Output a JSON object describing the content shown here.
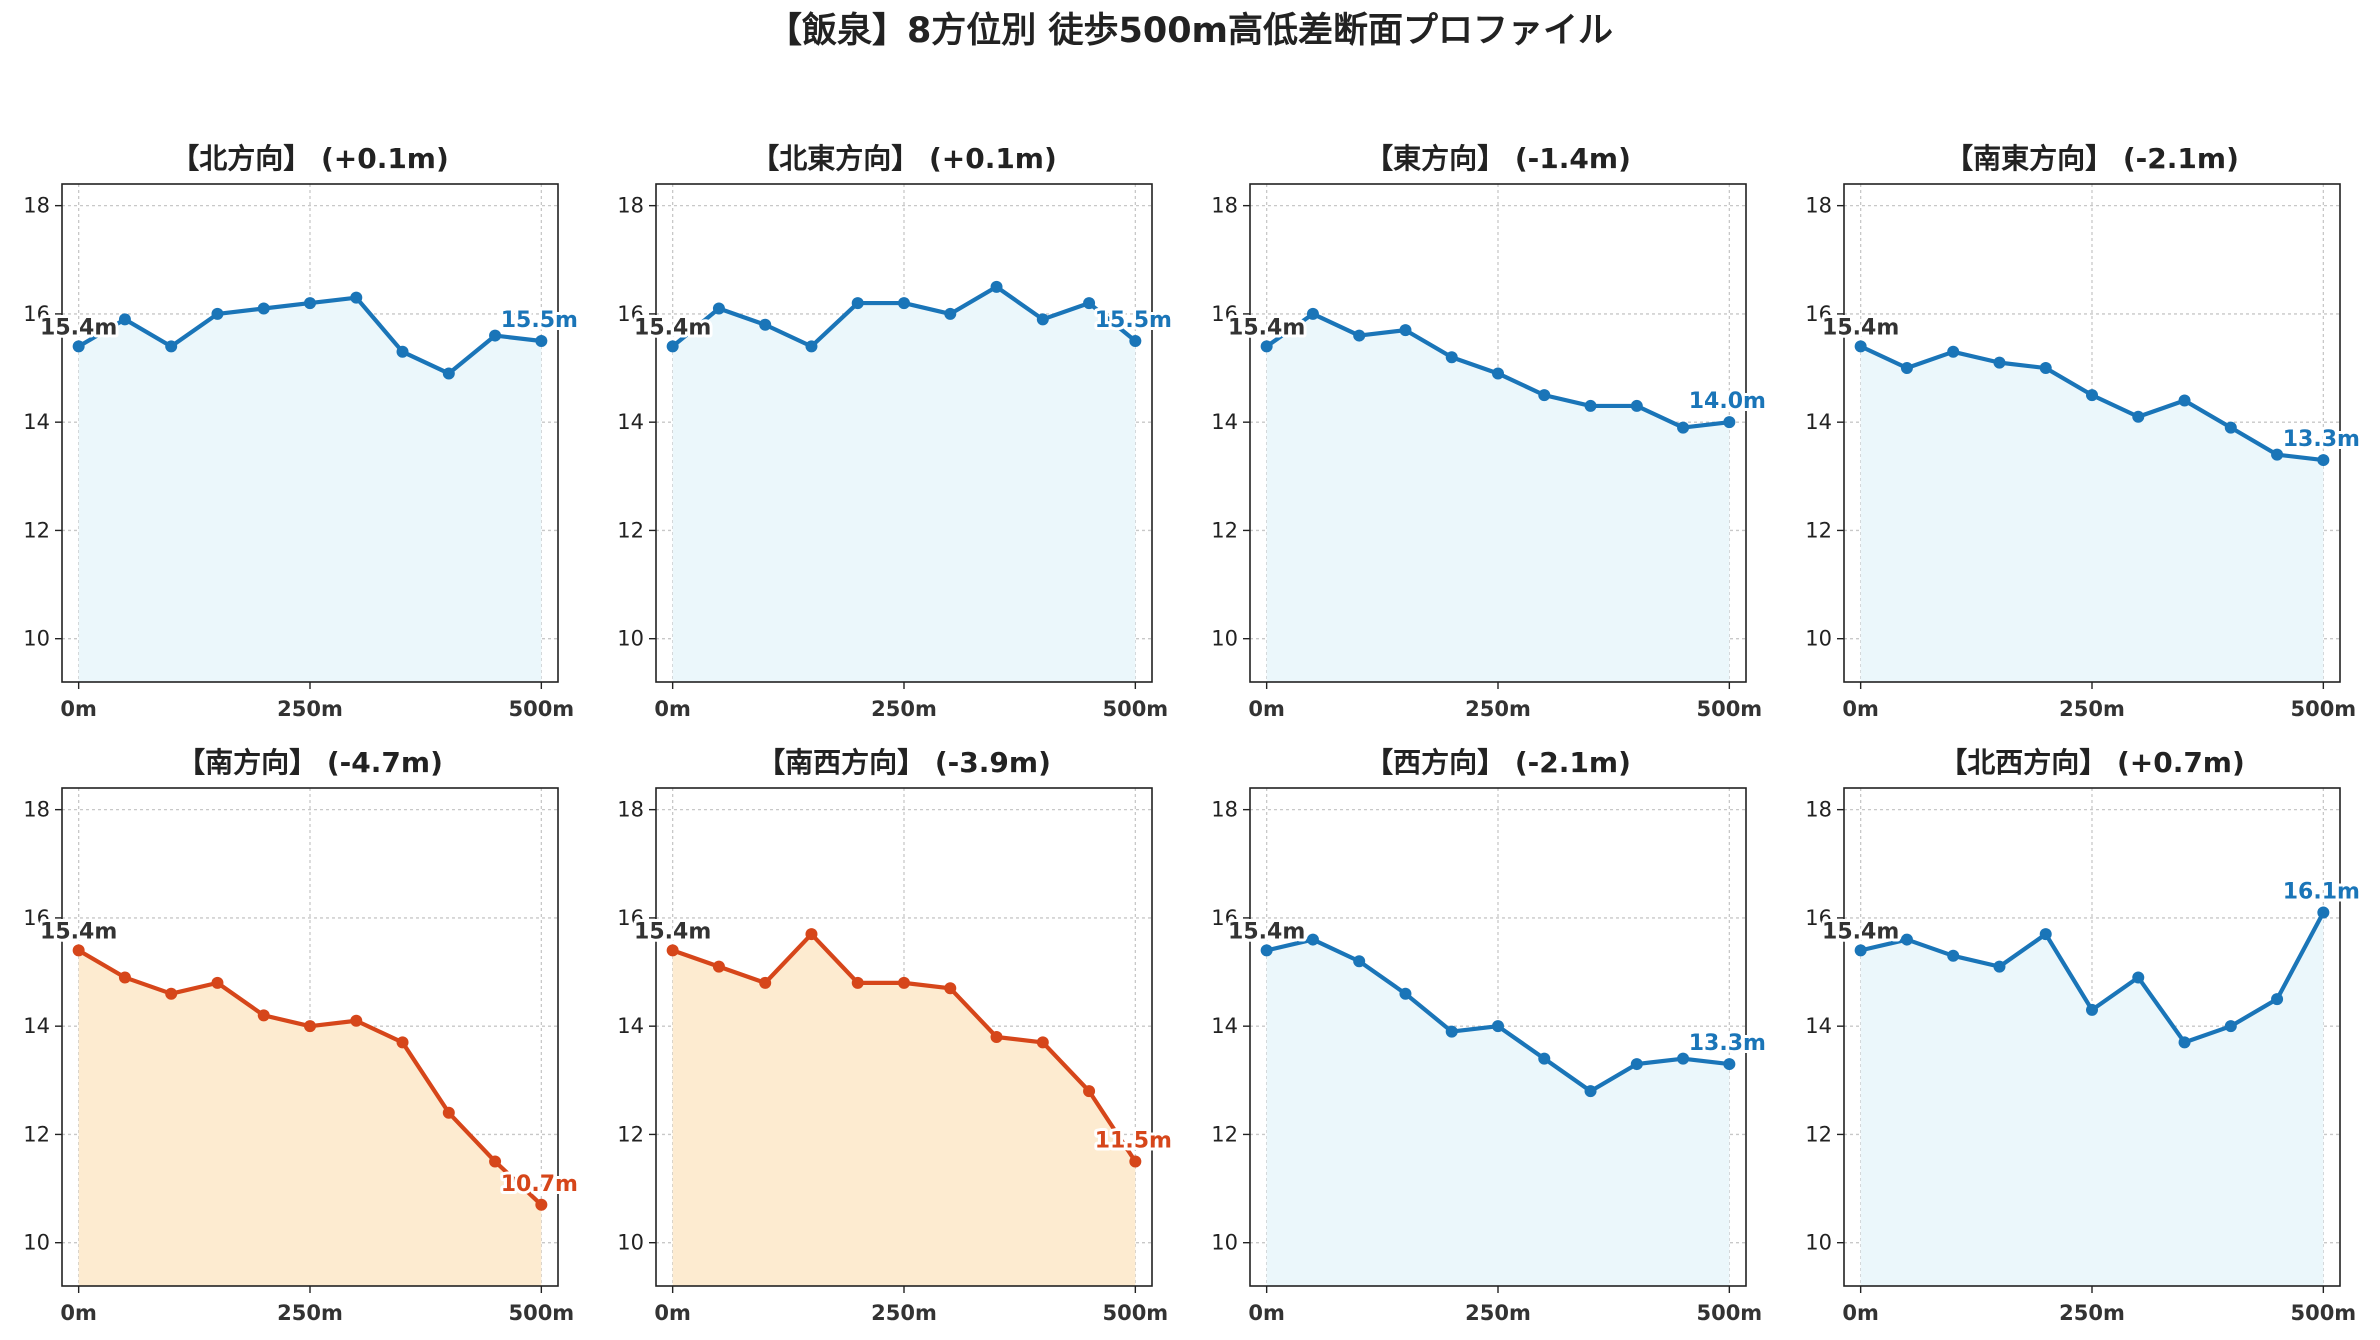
{
  "colors": {
    "up": "#1a75b8",
    "up_fill": "#ebf7fb",
    "down": "#d6461a",
    "down_fill": "#fdebd0",
    "start_label": "#333333"
  },
  "chart_data": {
    "type": "line",
    "title": "【飯泉】8方位別 徒歩500m高低差断面プロファイル",
    "xlabel": "",
    "ylabel": "",
    "xlim": [
      -18,
      518
    ],
    "ylim": [
      9.2,
      18.4
    ],
    "x_ticks": [
      0,
      250,
      500
    ],
    "x_tick_labels": [
      "0m",
      "250m",
      "500m"
    ],
    "y_ticks": [
      10,
      12,
      14,
      16,
      18
    ],
    "y_tick_labels": [
      "10",
      "12",
      "14",
      "16",
      "18"
    ],
    "grid": true,
    "x": [
      0,
      50,
      100,
      150,
      200,
      250,
      300,
      350,
      400,
      450,
      500
    ],
    "panels": [
      {
        "title": "【北方向】 (+0.1m)",
        "style": "up",
        "values": [
          15.4,
          15.9,
          15.4,
          16.0,
          16.1,
          16.2,
          16.3,
          15.3,
          14.9,
          15.6,
          15.5
        ],
        "start_label": "15.4m",
        "end_label": "15.5m"
      },
      {
        "title": "【北東方向】 (+0.1m)",
        "style": "up",
        "values": [
          15.4,
          16.1,
          15.8,
          15.4,
          16.2,
          16.2,
          16.0,
          16.5,
          15.9,
          16.2,
          15.5
        ],
        "start_label": "15.4m",
        "end_label": "15.5m"
      },
      {
        "title": "【東方向】 (-1.4m)",
        "style": "up",
        "values": [
          15.4,
          16.0,
          15.6,
          15.7,
          15.2,
          14.9,
          14.5,
          14.3,
          14.3,
          13.9,
          14.0
        ],
        "start_label": "15.4m",
        "end_label": "14.0m"
      },
      {
        "title": "【南東方向】 (-2.1m)",
        "style": "up",
        "values": [
          15.4,
          15.0,
          15.3,
          15.1,
          15.0,
          14.5,
          14.1,
          14.4,
          13.9,
          13.4,
          13.3
        ],
        "start_label": "15.4m",
        "end_label": "13.3m"
      },
      {
        "title": "【南方向】 (-4.7m)",
        "style": "down",
        "values": [
          15.4,
          14.9,
          14.6,
          14.8,
          14.2,
          14.0,
          14.1,
          13.7,
          12.4,
          11.5,
          10.7
        ],
        "start_label": "15.4m",
        "end_label": "10.7m"
      },
      {
        "title": "【南西方向】 (-3.9m)",
        "style": "down",
        "values": [
          15.4,
          15.1,
          14.8,
          15.7,
          14.8,
          14.8,
          14.7,
          13.8,
          13.7,
          12.8,
          11.5
        ],
        "start_label": "15.4m",
        "end_label": "11.5m"
      },
      {
        "title": "【西方向】 (-2.1m)",
        "style": "up",
        "values": [
          15.4,
          15.6,
          15.2,
          14.6,
          13.9,
          14.0,
          13.4,
          12.8,
          13.3,
          13.4,
          13.3
        ],
        "start_label": "15.4m",
        "end_label": "13.3m"
      },
      {
        "title": "【北西方向】 (+0.7m)",
        "style": "up",
        "values": [
          15.4,
          15.6,
          15.3,
          15.1,
          15.7,
          14.3,
          14.9,
          13.7,
          14.0,
          14.5,
          16.1
        ],
        "start_label": "15.4m",
        "end_label": "16.1m"
      }
    ]
  }
}
